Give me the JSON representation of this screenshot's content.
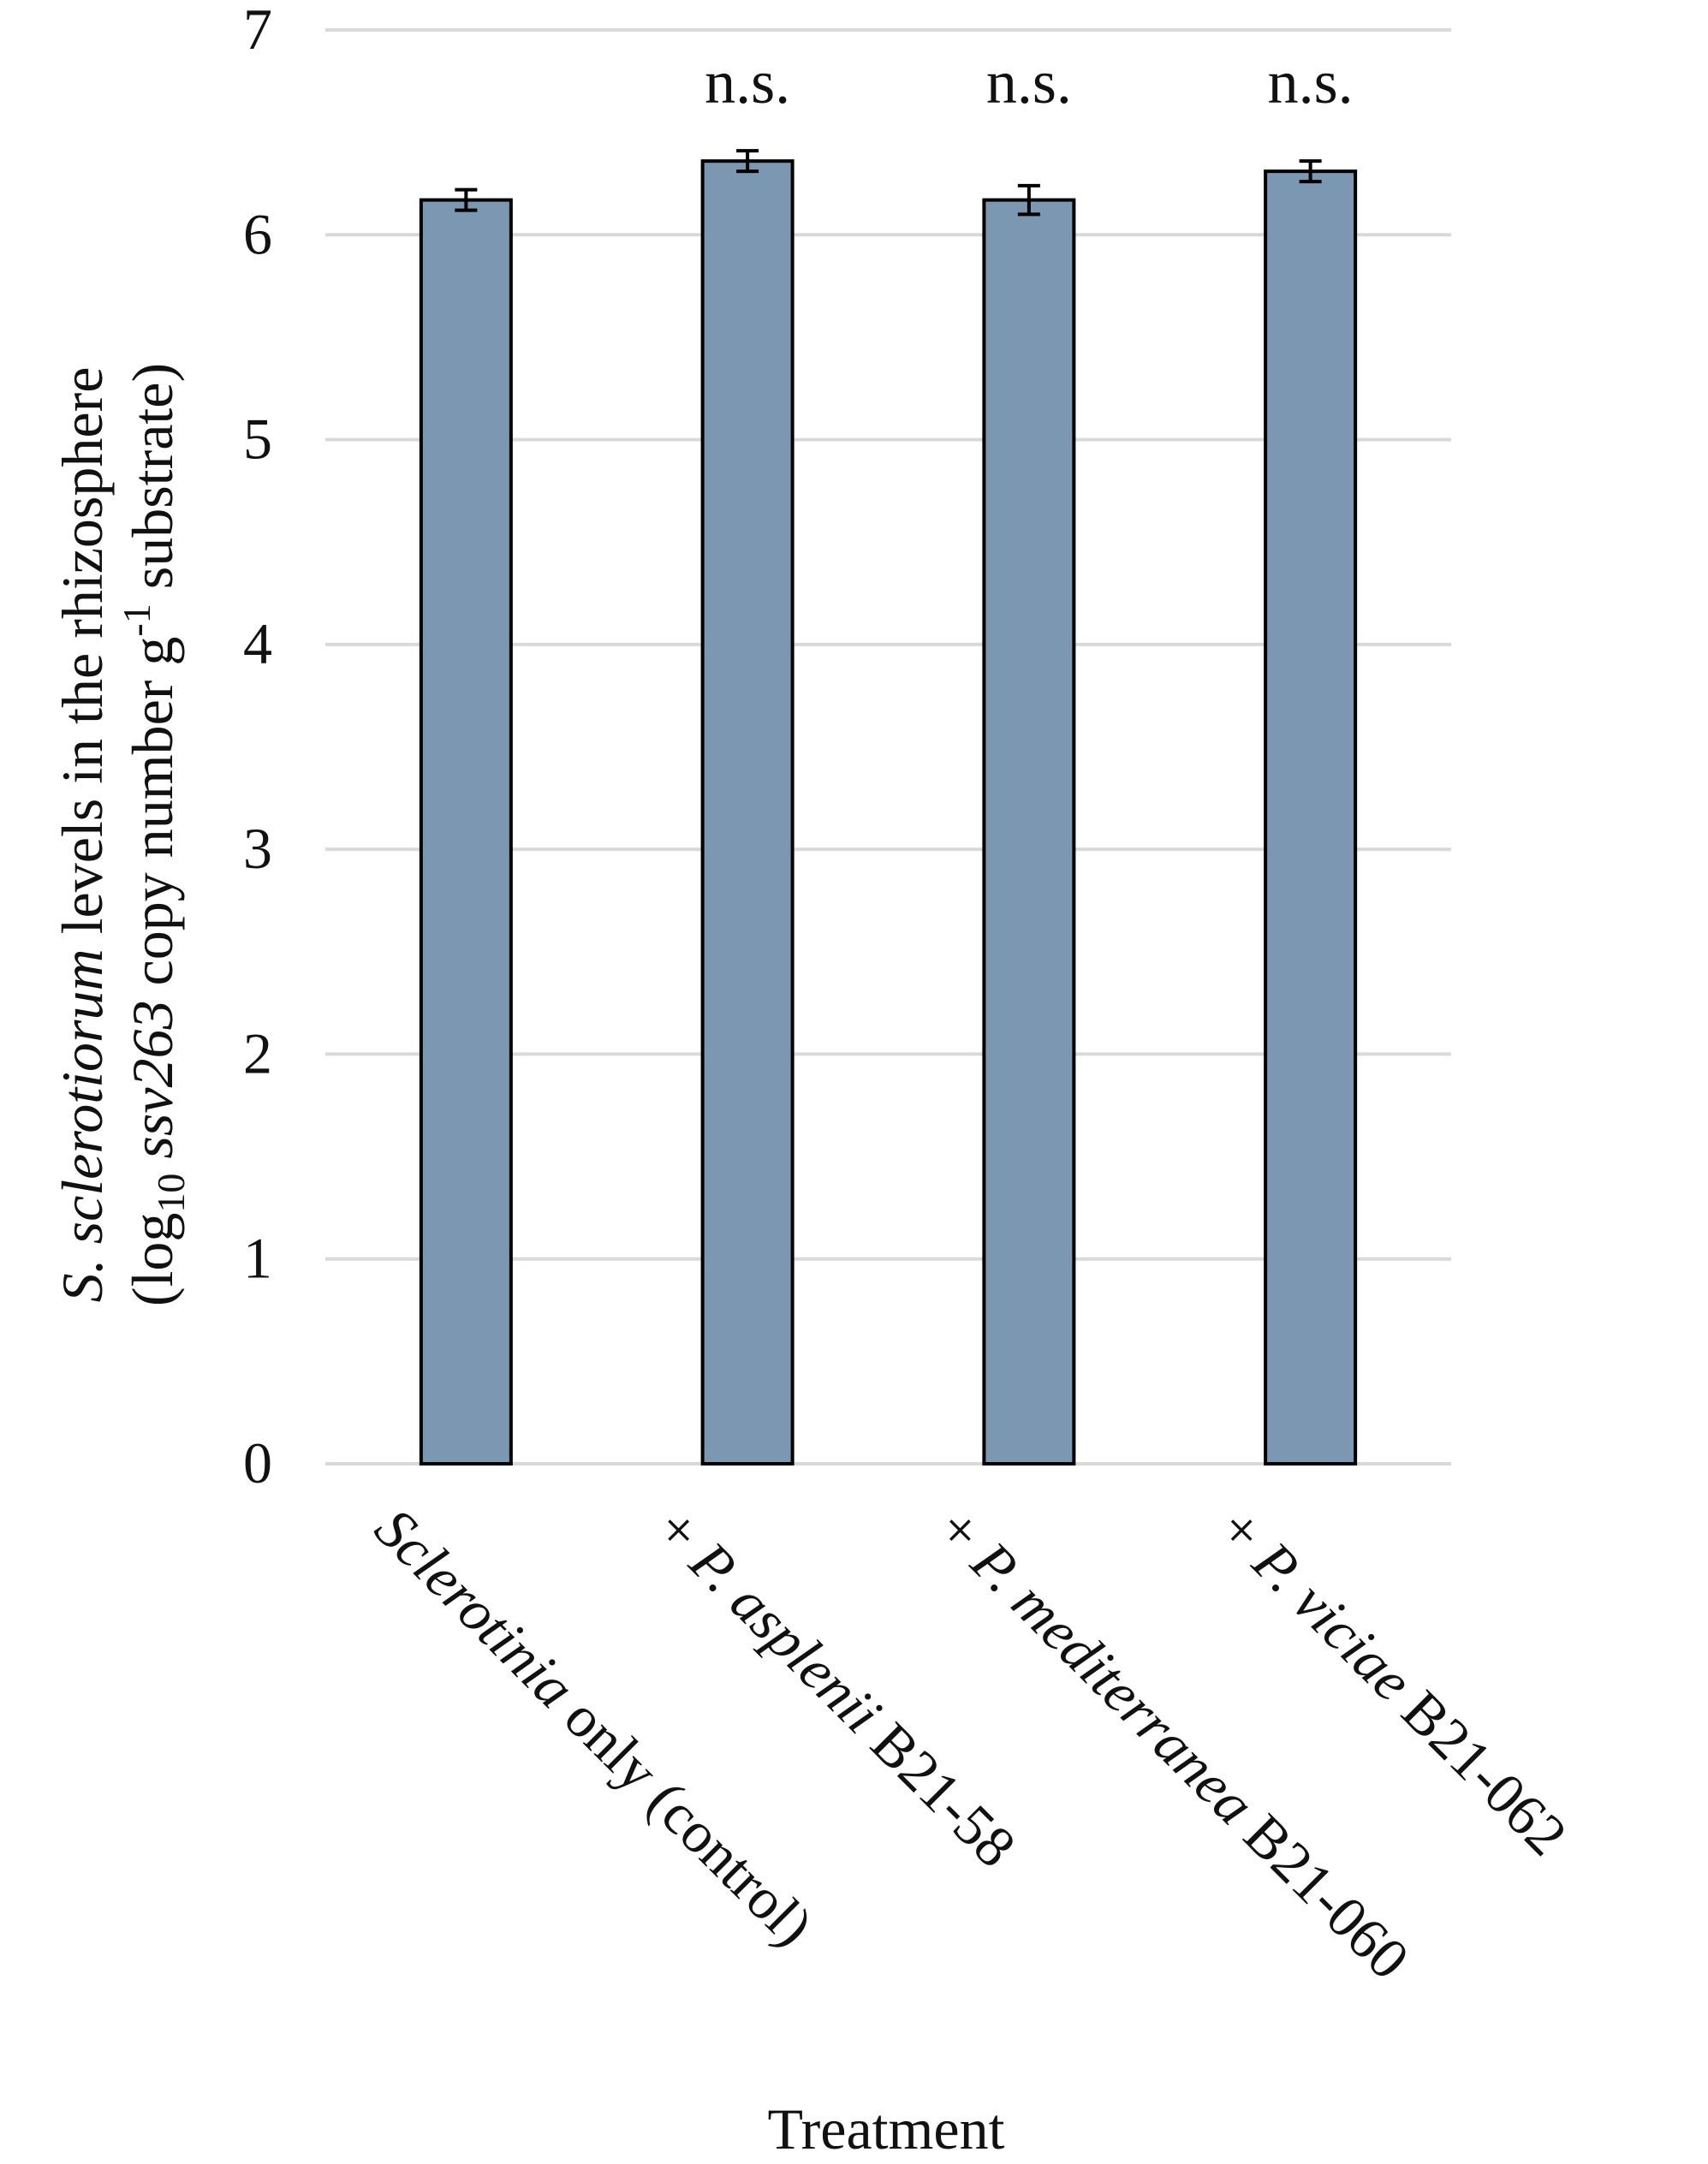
{
  "chart_data": {
    "type": "bar",
    "xlabel": "Treatment",
    "ylabel_parts": [
      {
        "line": 1,
        "text": "S. sclerotiorum",
        "italic": true
      },
      {
        "line": 1,
        "text": " levels in the rhizosphere",
        "italic": false
      },
      {
        "line": 2,
        "text": "(log",
        "italic": false
      },
      {
        "line": 2,
        "text": "10",
        "italic": false,
        "script": "sub"
      },
      {
        "line": 2,
        "text": " ",
        "italic": false
      },
      {
        "line": 2,
        "text": "ssv263",
        "italic": true
      },
      {
        "line": 2,
        "text": " copy number g",
        "italic": false
      },
      {
        "line": 2,
        "text": "-1",
        "italic": false,
        "script": "super"
      },
      {
        "line": 2,
        "text": " substrate)",
        "italic": false
      }
    ],
    "ylim": [
      0,
      7
    ],
    "yticks": [
      "0",
      "1",
      "2",
      "3",
      "4",
      "5",
      "6",
      "7"
    ],
    "grid": true,
    "bar_color": "#7b97b2",
    "categories": [
      [
        {
          "text": "Sclerotinia",
          "italic": true
        },
        {
          "text": " only (control)",
          "italic": false
        }
      ],
      [
        {
          "text": "+ ",
          "italic": false
        },
        {
          "text": "P. asplenii",
          "italic": true
        },
        {
          "text": " B21-58",
          "italic": false
        }
      ],
      [
        {
          "text": "+ ",
          "italic": false
        },
        {
          "text": "P. mediterranea",
          "italic": true
        },
        {
          "text": " B21-060",
          "italic": false
        }
      ],
      [
        {
          "text": "+ ",
          "italic": false
        },
        {
          "text": "P. viciae",
          "italic": true
        },
        {
          "text": " B21-062",
          "italic": false
        }
      ]
    ],
    "values": [
      6.17,
      6.36,
      6.17,
      6.31
    ],
    "errors": [
      0.05,
      0.05,
      0.07,
      0.05
    ],
    "annotations": [
      "",
      "n.s.",
      "n.s.",
      "n.s."
    ]
  }
}
